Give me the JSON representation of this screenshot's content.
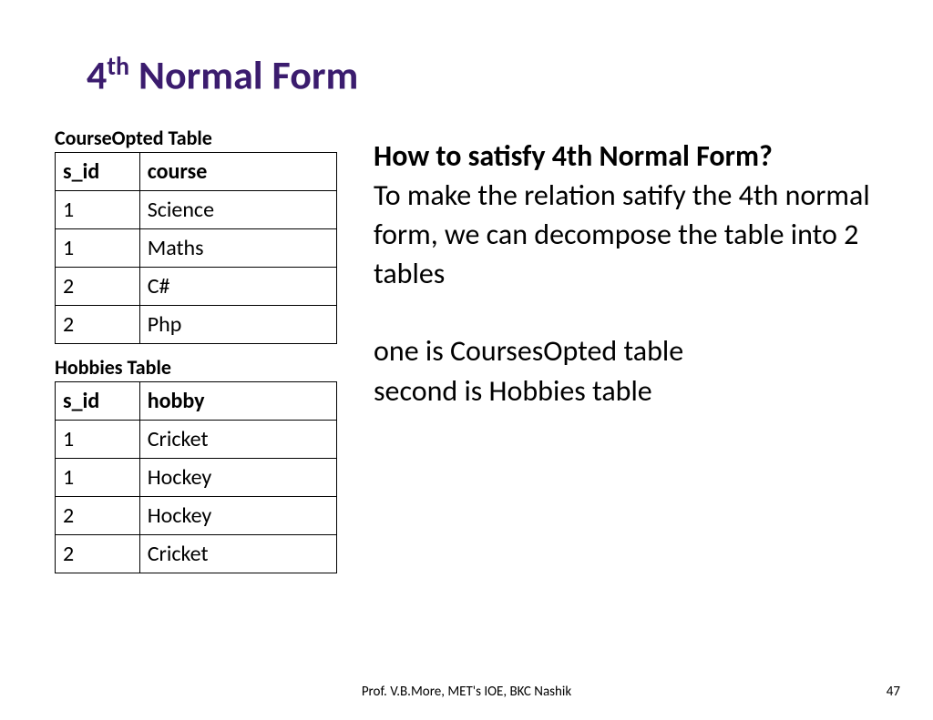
{
  "title_prefix": "4",
  "title_sup": "th",
  "title_rest": " Normal Form",
  "title_color": "#3b1c6e",
  "table1": {
    "label": "CourseOpted Table",
    "columns": [
      "s_id",
      "course"
    ],
    "rows": [
      [
        "1",
        "Science"
      ],
      [
        "1",
        "Maths"
      ],
      [
        "2",
        "C#"
      ],
      [
        "2",
        "Php"
      ]
    ]
  },
  "table2": {
    "label": "Hobbies Table",
    "columns": [
      "s_id",
      "hobby"
    ],
    "rows": [
      [
        "1",
        "Cricket"
      ],
      [
        "1",
        "Hockey"
      ],
      [
        "2",
        "Hockey"
      ],
      [
        "2",
        "Cricket"
      ]
    ]
  },
  "right": {
    "heading": "How to satisfy 4th Normal Form?",
    "para1": "To make the relation satify the 4th normal form, we can decompose the table into 2 tables",
    "para2a": "one is CoursesOpted table",
    "para2b": "second is Hobbies table"
  },
  "footer": {
    "center": "Prof. V.B.More, MET's IOE, BKC Nashik",
    "page": "47"
  }
}
